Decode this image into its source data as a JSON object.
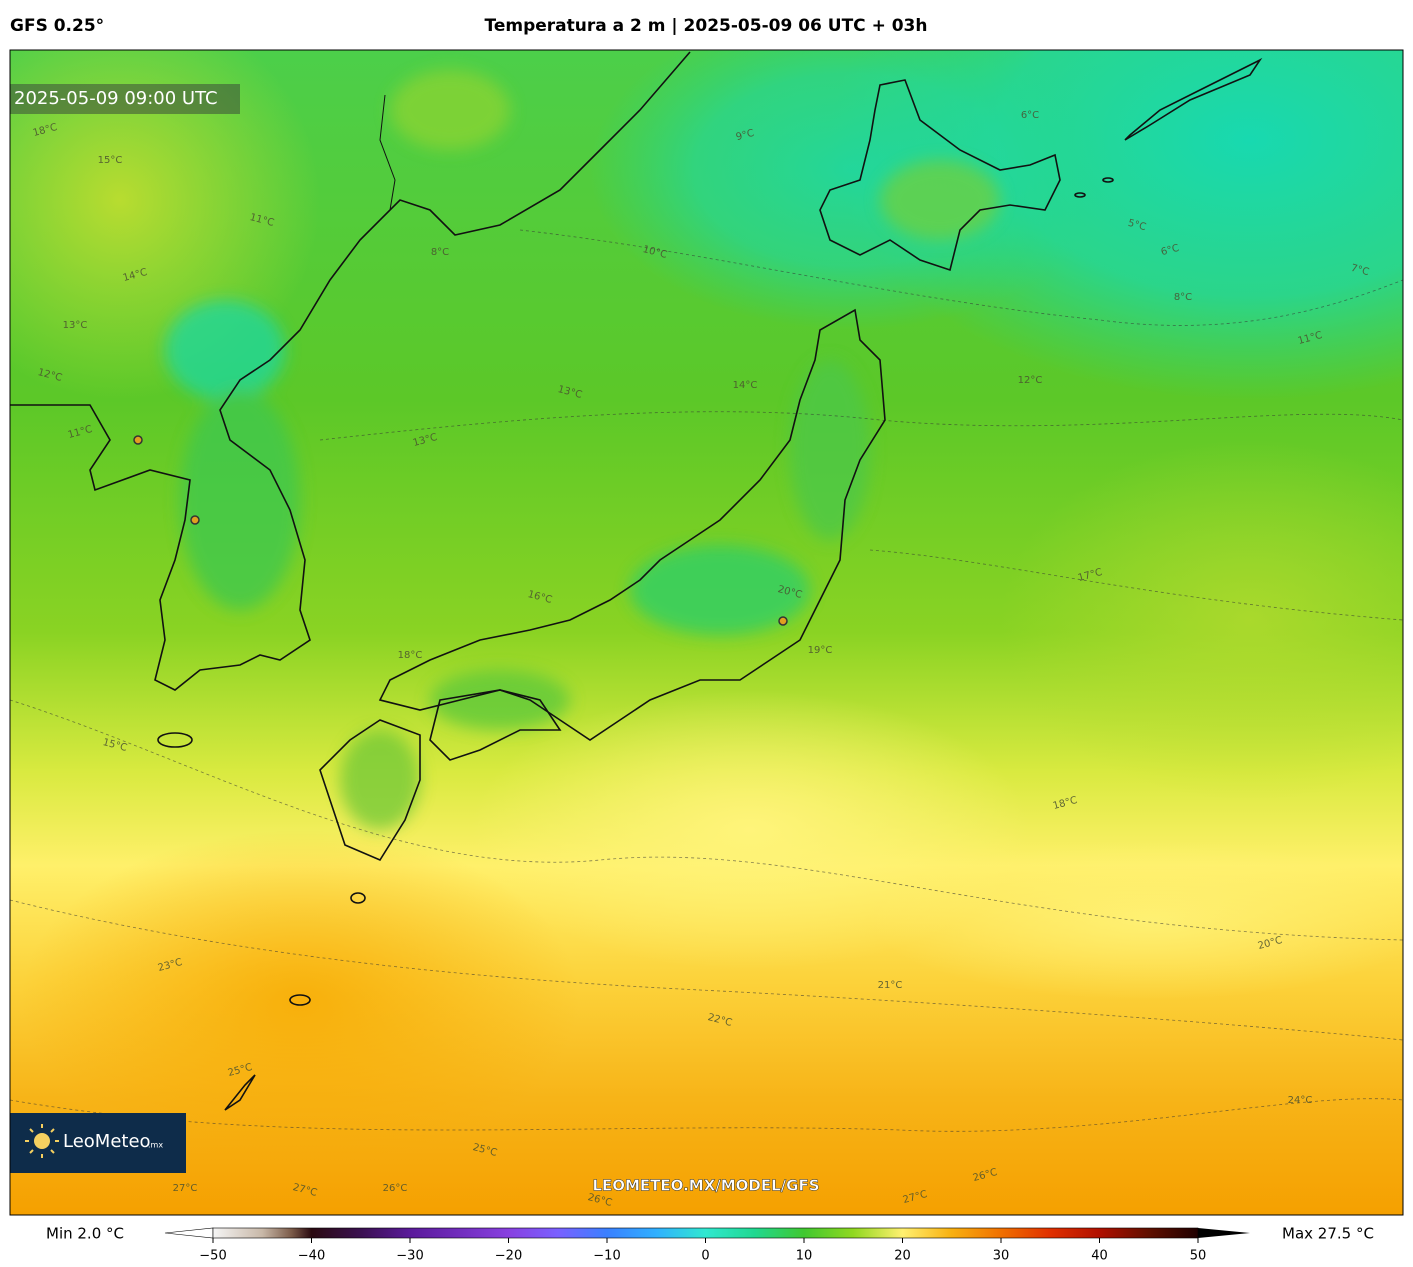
{
  "header": {
    "model": "GFS 0.25°",
    "title": "Temperatura a 2 m | 2025-05-09 06 UTC + 03h"
  },
  "map": {
    "valid_time": "2025-05-09 09:00 UTC",
    "watermark": "LEOMETEO.MX/MODEL/GFS",
    "logo": {
      "name": "LeoMeteo",
      "suffix": ".mx"
    },
    "contour_labels": [
      "18°C",
      "15°C",
      "11°C",
      "14°C",
      "13°C",
      "12°C",
      "11°C",
      "8°C",
      "10°C",
      "9°C",
      "6°C",
      "5°C",
      "6°C",
      "8°C",
      "7°C",
      "11°C",
      "12°C",
      "13°C",
      "13°C",
      "14°C",
      "16°C",
      "17°C",
      "18°C",
      "15°C",
      "18°C",
      "19°C",
      "20°C",
      "20°C",
      "21°C",
      "22°C",
      "23°C",
      "24°C",
      "25°C",
      "26°C",
      "27°C",
      "27°C",
      "27°C",
      "26°C",
      "26°C",
      "25°C"
    ]
  },
  "colorbar": {
    "min_label": "Min 2.0 °C",
    "max_label": "Max 27.5 °C",
    "range": [
      -50,
      50
    ],
    "ticks": [
      {
        "value": -50,
        "label": "−50"
      },
      {
        "value": -40,
        "label": "−40"
      },
      {
        "value": -30,
        "label": "−30"
      },
      {
        "value": -20,
        "label": "−20"
      },
      {
        "value": -10,
        "label": "−10"
      },
      0,
      10,
      20,
      30,
      40,
      50
    ]
  }
}
